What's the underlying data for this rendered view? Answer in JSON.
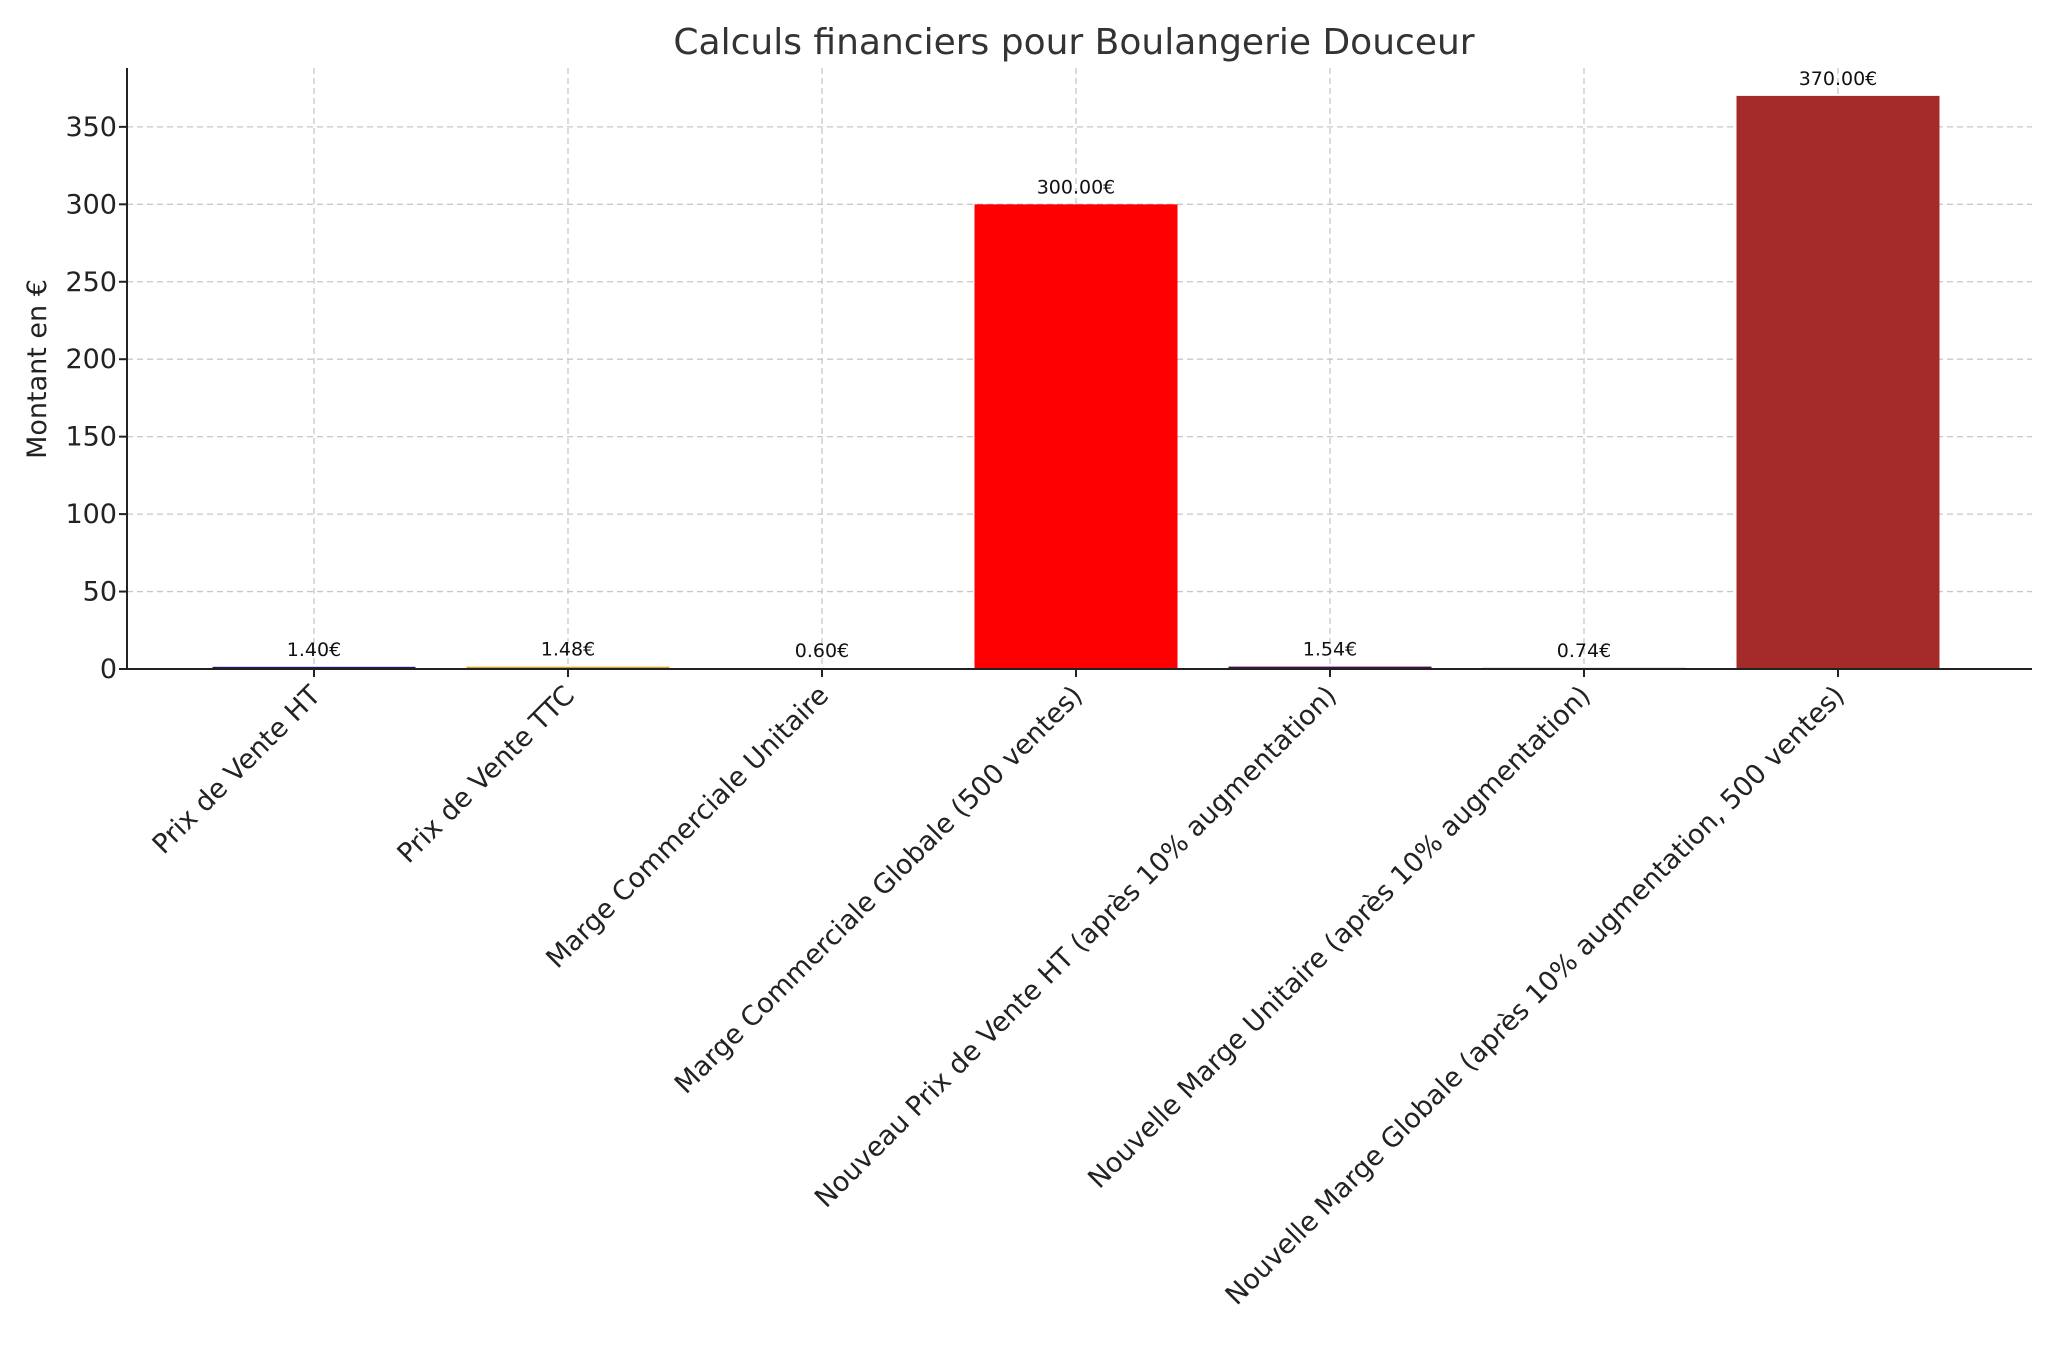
{
  "chart_data": {
    "type": "bar",
    "title": "Calculs financiers pour Boulangerie Douceur",
    "xlabel": "",
    "ylabel": "Montant en €",
    "ylim": [
      0,
      388
    ],
    "yticks": [
      0,
      50,
      100,
      150,
      200,
      250,
      300,
      350
    ],
    "grid": true,
    "categories": [
      "Prix de Vente HT",
      "Prix de Vente TTC",
      "Marge Commerciale Unitaire",
      "Marge Commerciale Globale (500 ventes)",
      "Nouveau Prix de Vente HT (après 10% augmentation)",
      "Nouvelle Marge Unitaire (après 10% augmentation)",
      "Nouvelle Marge Globale (après 10% augmentation, 500 ventes)"
    ],
    "values": [
      1.4,
      1.48,
      0.6,
      300.0,
      1.54,
      0.74,
      370.0
    ],
    "data_labels": [
      "1.40€",
      "1.48€",
      "0.60€",
      "300.00€",
      "1.54€",
      "0.74€",
      "370.00€"
    ],
    "colors": [
      "#191970",
      "#DAA520",
      "#2E8B57",
      "#FF0000",
      "#4B0B4B",
      "#3A5F8A",
      "#A52A2A"
    ]
  }
}
